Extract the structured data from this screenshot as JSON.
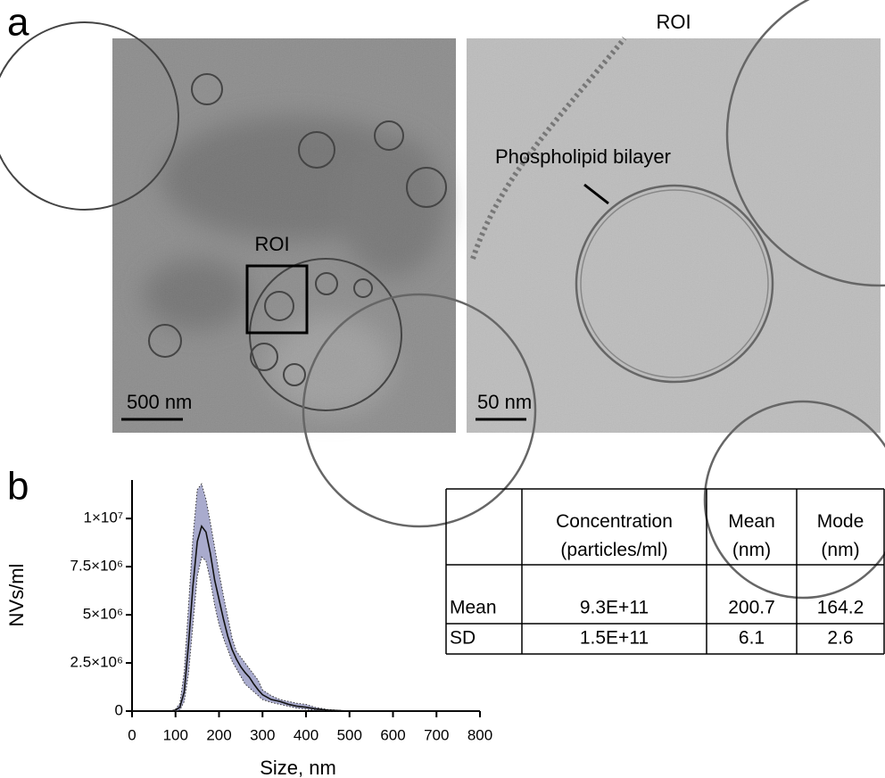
{
  "panel_a": {
    "label": "a",
    "overview": {
      "roi_label": "ROI",
      "scale_bar": "500 nm"
    },
    "roi": {
      "title": "ROI",
      "scale_bar": "50 nm",
      "annotation": "Phospholipid bilayer"
    }
  },
  "chart_data": {
    "type": "line",
    "panel_label": "b",
    "x_label": "Size, nm",
    "y_label": "NVs/ml",
    "x": [
      0,
      90,
      100,
      110,
      120,
      130,
      140,
      150,
      160,
      170,
      180,
      190,
      200,
      210,
      220,
      230,
      240,
      250,
      260,
      270,
      280,
      290,
      300,
      320,
      340,
      360,
      380,
      400,
      420,
      450,
      500,
      600,
      700,
      800
    ],
    "series": [
      {
        "color": "#111111",
        "values": [
          0,
          0,
          50000,
          200000,
          1000000,
          3500000,
          6500000,
          8800000,
          9600000,
          9300000,
          8200000,
          6800000,
          5800000,
          4800000,
          3900000,
          3200000,
          2700000,
          2300000,
          2000000,
          1750000,
          1400000,
          1100000,
          850000,
          600000,
          500000,
          350000,
          250000,
          200000,
          120000,
          50000,
          0,
          0,
          0,
          0
        ]
      }
    ],
    "band": {
      "color": "#9a9cc4",
      "upper": [
        0,
        0,
        100000,
        400000,
        2000000,
        5500000,
        9000000,
        11500000,
        11800000,
        11000000,
        9800000,
        8500000,
        7200000,
        6000000,
        4900000,
        3800000,
        3100000,
        2800000,
        2500000,
        2200000,
        1900000,
        1600000,
        1100000,
        800000,
        600000,
        500000,
        400000,
        350000,
        200000,
        80000,
        0,
        0,
        0,
        0
      ],
      "lower": [
        0,
        0,
        0,
        50000,
        500000,
        2000000,
        4500000,
        7000000,
        8000000,
        7800000,
        6800000,
        5500000,
        4500000,
        3800000,
        3200000,
        2600000,
        2200000,
        1800000,
        1400000,
        1200000,
        1000000,
        800000,
        600000,
        450000,
        350000,
        250000,
        150000,
        100000,
        50000,
        20000,
        0,
        0,
        0,
        0
      ]
    },
    "xlim": [
      0,
      800
    ],
    "xticks": [
      0,
      100,
      200,
      300,
      400,
      500,
      600,
      700,
      800
    ],
    "ylim": [
      0,
      12000000
    ],
    "yticks": [
      0,
      {
        "value": 2500000,
        "label": "2.5×10⁶"
      },
      {
        "value": 5000000,
        "label": "5×10⁶"
      },
      {
        "value": 7500000,
        "label": "7.5×10⁶"
      },
      {
        "value": 10000000,
        "label": "1×10⁷"
      }
    ]
  },
  "table": {
    "columns": [
      "Concentration\n(particles/ml)",
      "Mean\n(nm)",
      "Mode\n(nm)"
    ],
    "rows": [
      {
        "label": "Mean",
        "cells": [
          "9.3E+11",
          "200.7",
          "164.2"
        ]
      },
      {
        "label": "SD",
        "cells": [
          "1.5E+11",
          "6.1",
          "2.6"
        ]
      }
    ]
  }
}
